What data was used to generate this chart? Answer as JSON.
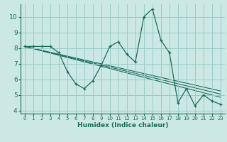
{
  "xlabel": "Humidex (Indice chaleur)",
  "background_color": "#cce8e4",
  "grid_color": "#99ccc7",
  "line_color": "#1a6b5a",
  "xlim": [
    -0.5,
    23.5
  ],
  "ylim": [
    3.8,
    10.8
  ],
  "xticks": [
    0,
    1,
    2,
    3,
    4,
    5,
    6,
    7,
    8,
    9,
    10,
    11,
    12,
    13,
    14,
    15,
    16,
    17,
    18,
    19,
    20,
    21,
    22,
    23
  ],
  "yticks": [
    4,
    5,
    6,
    7,
    8,
    9,
    10
  ],
  "main_x": [
    0,
    1,
    2,
    3,
    4,
    5,
    6,
    7,
    8,
    9,
    10,
    11,
    12,
    13,
    14,
    15,
    16,
    17,
    18,
    19,
    20,
    21,
    22,
    23
  ],
  "main_y": [
    8.1,
    8.1,
    8.1,
    8.1,
    7.7,
    6.5,
    5.7,
    5.4,
    5.9,
    6.9,
    8.1,
    8.4,
    7.6,
    7.1,
    10.0,
    10.5,
    8.5,
    7.7,
    4.5,
    5.4,
    4.3,
    5.0,
    4.6,
    4.4
  ],
  "trend_lines": [
    {
      "x": [
        0,
        23
      ],
      "y": [
        8.1,
        4.85
      ]
    },
    {
      "x": [
        0,
        23
      ],
      "y": [
        8.1,
        5.05
      ]
    },
    {
      "x": [
        0,
        23
      ],
      "y": [
        8.1,
        5.25
      ]
    }
  ]
}
